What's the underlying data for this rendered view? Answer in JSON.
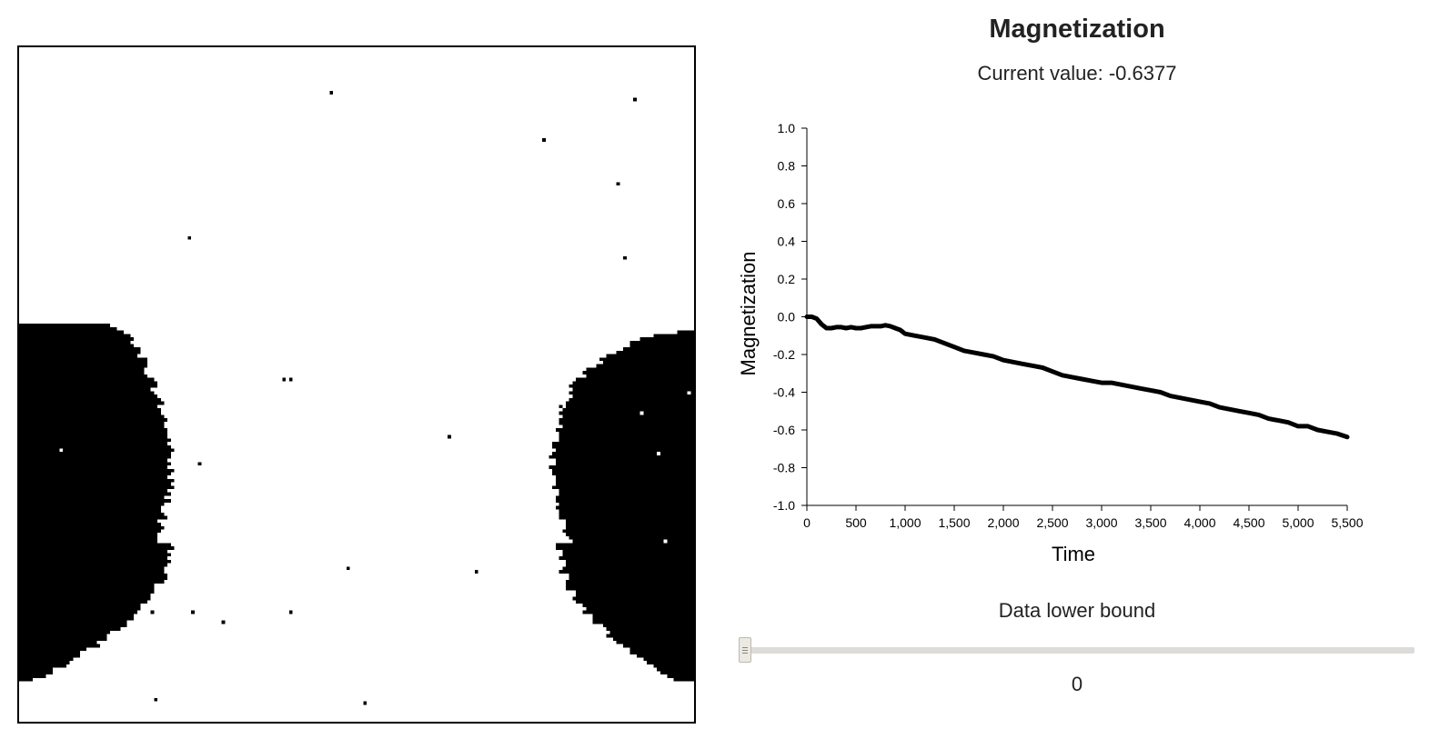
{
  "simulation": {
    "grid_size": 200,
    "spin_up_color": "#ffffff",
    "spin_down_color": "#000000"
  },
  "chart": {
    "title": "Magnetization",
    "current_value_text": "Current value: -0.6377"
  },
  "chart_data": {
    "type": "line",
    "xlabel": "Time",
    "ylabel": "Magnetization",
    "xlim": [
      0,
      5500
    ],
    "ylim": [
      -1.0,
      1.0
    ],
    "x_ticks": [
      0,
      500,
      1000,
      1500,
      2000,
      2500,
      3000,
      3500,
      4000,
      4500,
      5000,
      5500
    ],
    "x_tick_labels": [
      "0",
      "500",
      "1,000",
      "1,500",
      "2,000",
      "2,500",
      "3,000",
      "3,500",
      "4,000",
      "4,500",
      "5,000",
      "5,500"
    ],
    "y_ticks": [
      1.0,
      0.8,
      0.6,
      0.4,
      0.2,
      0.0,
      -0.2,
      -0.4,
      -0.6,
      -0.8,
      -1.0
    ],
    "y_tick_labels": [
      "1.0",
      "0.8",
      "0.6",
      "0.4",
      "0.2",
      "0.0",
      "-0.2",
      "-0.4",
      "-0.6",
      "-0.8",
      "-1.0"
    ],
    "line_color": "#000000",
    "series": [
      {
        "x": [
          0,
          50,
          100,
          150,
          200,
          250,
          300,
          350,
          400,
          450,
          500,
          550,
          600,
          650,
          700,
          750,
          800,
          850,
          900,
          950,
          1000,
          1100,
          1200,
          1300,
          1400,
          1500,
          1600,
          1700,
          1800,
          1900,
          2000,
          2100,
          2200,
          2300,
          2400,
          2500,
          2600,
          2700,
          2800,
          2900,
          3000,
          3100,
          3200,
          3300,
          3400,
          3500,
          3600,
          3700,
          3800,
          3900,
          4000,
          4100,
          4200,
          4300,
          4400,
          4500,
          4600,
          4700,
          4800,
          4900,
          5000,
          5100,
          5200,
          5300,
          5400,
          5500
        ],
        "y": [
          0.0,
          0.0,
          -0.01,
          -0.04,
          -0.06,
          -0.06,
          -0.055,
          -0.055,
          -0.06,
          -0.055,
          -0.06,
          -0.06,
          -0.055,
          -0.05,
          -0.05,
          -0.05,
          -0.045,
          -0.05,
          -0.06,
          -0.07,
          -0.09,
          -0.1,
          -0.11,
          -0.12,
          -0.14,
          -0.16,
          -0.18,
          -0.19,
          -0.2,
          -0.21,
          -0.23,
          -0.24,
          -0.25,
          -0.26,
          -0.27,
          -0.29,
          -0.31,
          -0.32,
          -0.33,
          -0.34,
          -0.35,
          -0.35,
          -0.36,
          -0.37,
          -0.38,
          -0.39,
          -0.4,
          -0.42,
          -0.43,
          -0.44,
          -0.45,
          -0.46,
          -0.48,
          -0.49,
          -0.5,
          -0.51,
          -0.52,
          -0.54,
          -0.55,
          -0.56,
          -0.58,
          -0.58,
          -0.6,
          -0.61,
          -0.62,
          -0.6377
        ]
      }
    ]
  },
  "slider": {
    "label": "Data lower bound",
    "value": 0,
    "value_text": "0"
  }
}
